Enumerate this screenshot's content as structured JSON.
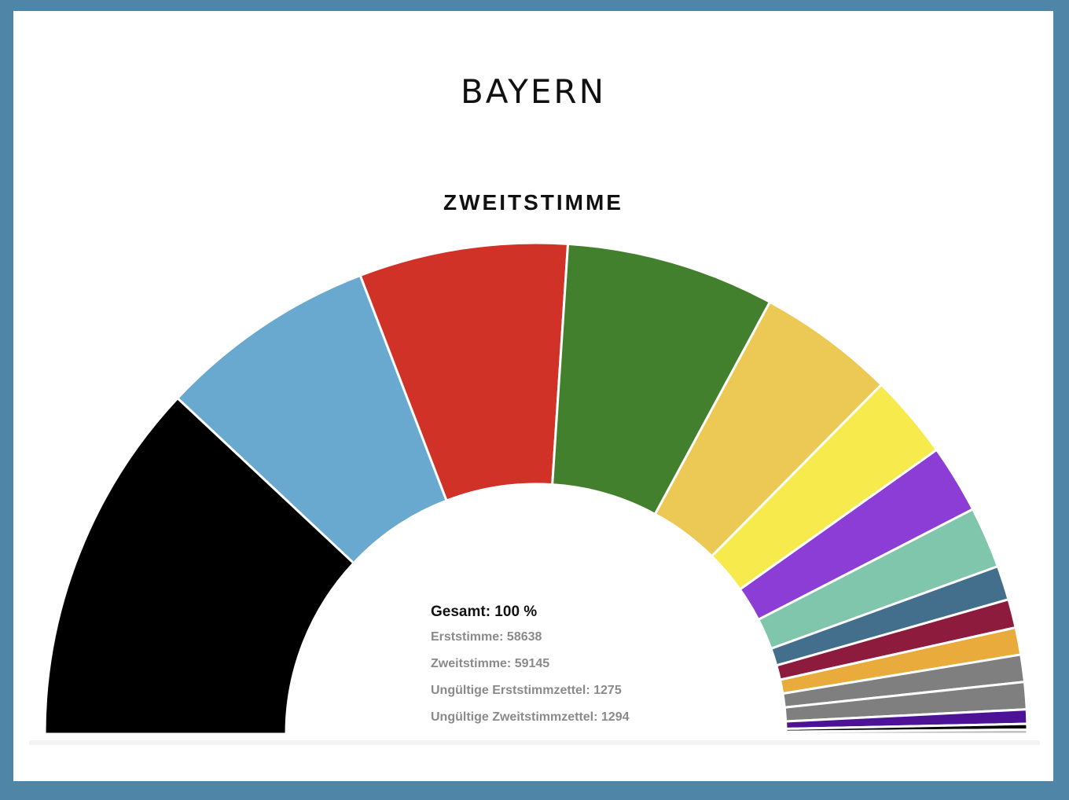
{
  "header": {
    "region": "BAYERN"
  },
  "center_info": {
    "total": "Gesamt: 100 %",
    "erststimme": "Erststimme: 58638",
    "zweitstimme": "Zweitstimme: 59145",
    "ungueltige_erst": "Ungültige Erststimmzettel: 1275",
    "ungueltige_zweit": "Ungültige Zweitstimmzettel: 1294"
  },
  "chart_data": {
    "type": "pie",
    "variant": "semicircle-donut",
    "title": "ZWEITSTIMME",
    "values": [
      25.5,
      15.3,
      14.6,
      14.6,
      9.6,
      5.9,
      4.8,
      4.3,
      2.4,
      2.0,
      1.9,
      1.9,
      1.9,
      1.0,
      0.4,
      0.3
    ],
    "colors": [
      "#000000",
      "#69a8cf",
      "#d03227",
      "#43802d",
      "#ebc954",
      "#f6ea4d",
      "#8b3dd6",
      "#80c6ad",
      "#436f8c",
      "#8c1b3e",
      "#e9ab3b",
      "#7f7f7f",
      "#7f7f7f",
      "#4d1396",
      "#000000",
      "#bdbdbd"
    ]
  }
}
